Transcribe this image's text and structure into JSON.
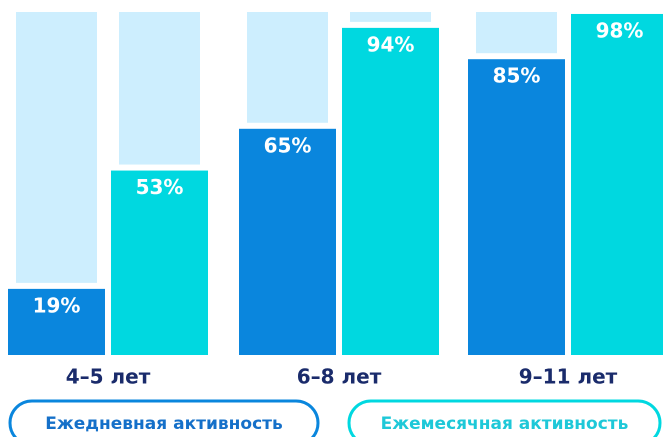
{
  "chart_data": {
    "type": "bar",
    "categories": [
      "4–5 лет",
      "6–8 лет",
      "9–11 лет"
    ],
    "series": [
      {
        "name": "Ежедневная активность",
        "color": "#0a86dd",
        "values": [
          19,
          65,
          85
        ],
        "value_labels": [
          "19%",
          "65%",
          "85%"
        ]
      },
      {
        "name": "Ежемесячная активность",
        "color": "#00d8e0",
        "values": [
          53,
          94,
          98
        ],
        "value_labels": [
          "53%",
          "94%",
          "98%"
        ]
      }
    ],
    "ylim": [
      0,
      100
    ]
  }
}
